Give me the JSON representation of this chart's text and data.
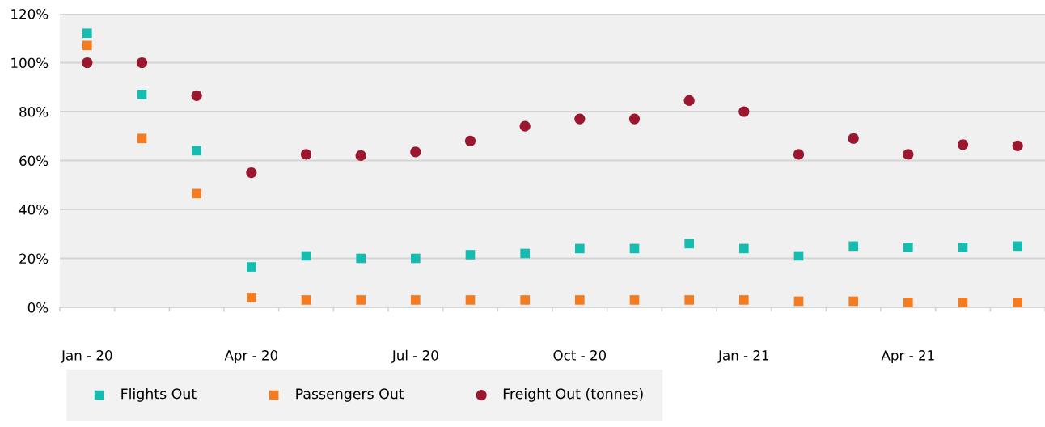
{
  "chart_data": {
    "type": "scatter",
    "categories": [
      "Jan - 20",
      null,
      null,
      "Apr - 20",
      null,
      null,
      "Jul - 20",
      null,
      null,
      "Oct - 20",
      null,
      null,
      "Jan - 21",
      null,
      null,
      "Apr - 21",
      null,
      null
    ],
    "series": [
      {
        "name": "Flights Out",
        "color": "#17bcb1",
        "marker": "square",
        "values": [
          112,
          87,
          64,
          16.5,
          21,
          20,
          20,
          21.5,
          22,
          24,
          24,
          26,
          24,
          21,
          25,
          24.5,
          24.5,
          25
        ]
      },
      {
        "name": "Passengers Out",
        "color": "#f47b20",
        "marker": "square",
        "values": [
          107,
          69,
          46.5,
          4,
          3,
          3,
          3,
          3,
          3,
          3,
          3,
          3,
          3,
          2.5,
          2.5,
          2,
          2,
          2
        ]
      },
      {
        "name": "Freight Out (tonnes)",
        "color": "#9b1730",
        "marker": "circle",
        "values": [
          100,
          100,
          86.5,
          55,
          62.5,
          62,
          63.5,
          68,
          74,
          77,
          77,
          84.5,
          80,
          62.5,
          69,
          62.5,
          66.5,
          66
        ]
      }
    ],
    "ylim": [
      0,
      120
    ],
    "yticks": [
      {
        "value": 0,
        "label": "0%"
      },
      {
        "value": 20,
        "label": "20%"
      },
      {
        "value": 40,
        "label": "40%"
      },
      {
        "value": 60,
        "label": "60%"
      },
      {
        "value": 80,
        "label": "80%"
      },
      {
        "value": 100,
        "label": "100%"
      },
      {
        "value": 120,
        "label": "120%"
      }
    ],
    "grid": "y",
    "legend": "bottom"
  }
}
